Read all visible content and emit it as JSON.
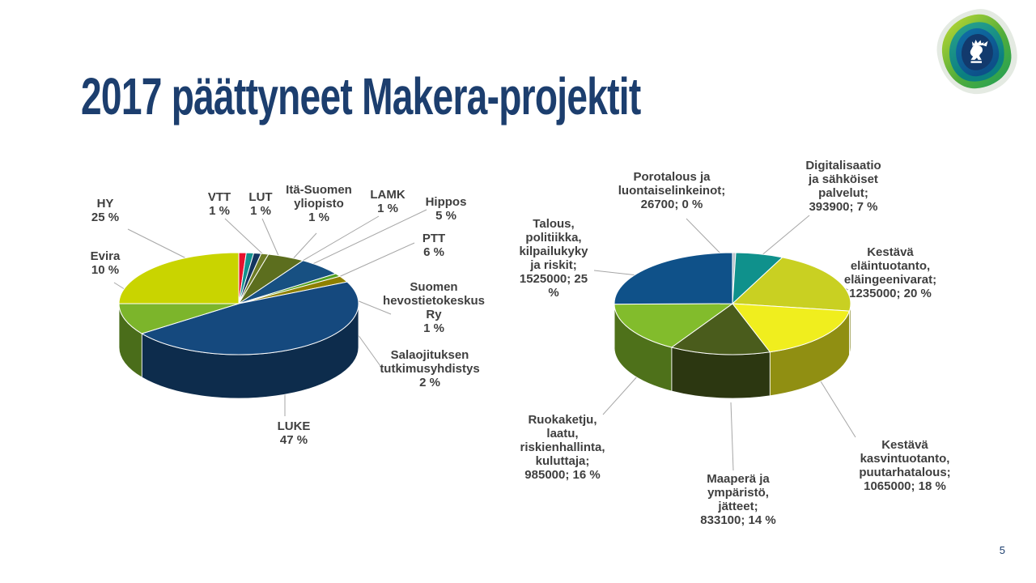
{
  "title": "2017 päättyneet Makera-projektit",
  "page_number": "5",
  "colors": {
    "title_text": "#1c3e6e",
    "label_text": "#3f3f3f",
    "leader_line": "#a6a6a6",
    "background": "#ffffff"
  },
  "logo": {
    "icon": "finnish-lion-emblem"
  },
  "chart_data": [
    {
      "type": "pie",
      "style": "3d",
      "title": "",
      "legend_position": "none",
      "labels": "outside-with-leader-lines",
      "slices": [
        {
          "label": "VTT",
          "pct": 1,
          "color": "#e8112d",
          "display": "VTT\n1 %"
        },
        {
          "label": "LUT",
          "pct": 1,
          "color": "#12918e",
          "display": "LUT\n1 %"
        },
        {
          "label": "Itä-Suomen yliopisto",
          "pct": 1,
          "color": "#14355f",
          "display": "Itä-Suomen\nyliopisto\n1 %"
        },
        {
          "label": "LAMK",
          "pct": 1,
          "color": "#6d7c25",
          "display": "LAMK\n1 %"
        },
        {
          "label": "Hippos",
          "pct": 5,
          "color": "#5c6e1e",
          "display": "Hippos\n5 %"
        },
        {
          "label": "PTT",
          "pct": 6,
          "color": "#175082",
          "display": "PTT\n6 %"
        },
        {
          "label": "Suomen hevostietokeskus Ry",
          "pct": 1,
          "color": "#54a021",
          "display": "Suomen\nhevostietokeskus\nRy\n1 %"
        },
        {
          "label": "Salaojituksen tutkimusyhdistys",
          "pct": 2,
          "color": "#8e8000",
          "display": "Salaojituksen\ntutkimusyhdistys\n2 %"
        },
        {
          "label": "LUKE",
          "pct": 47,
          "color": "#15497e",
          "display": "LUKE\n47 %"
        },
        {
          "label": "Evira",
          "pct": 10,
          "color": "#7cb52b",
          "display": "Evira\n10 %"
        },
        {
          "label": "HY",
          "pct": 25,
          "color": "#c9d400",
          "display": "HY\n25 %"
        }
      ]
    },
    {
      "type": "pie",
      "style": "3d",
      "title": "",
      "legend_position": "none",
      "labels": "outside-with-leader-lines",
      "slices": [
        {
          "label": "Porotalous ja luontaiselinkeinot",
          "value": 26700,
          "pct": 0,
          "color": "#b9c0c9",
          "display": "Porotalous ja\nluontaiselinkeinot;\n26700; 0 %"
        },
        {
          "label": "Digitalisaatio ja sähköiset palvelut",
          "value": 393900,
          "pct": 7,
          "color": "#0f918c",
          "display": "Digitalisaatio\nja sähköiset\npalvelut;\n393900; 7 %"
        },
        {
          "label": "Kestävä eläintuotanto, eläingeenivarat",
          "value": 1235000,
          "pct": 20,
          "color": "#c9d022",
          "display": "Kestävä\neläintuotanto,\neläingeenivarat;\n1235000; 20 %"
        },
        {
          "label": "Kestävä kasvintuotanto, puutarhatalous",
          "value": 1065000,
          "pct": 18,
          "color": "#f0ee1e",
          "display": "Kestävä\nkasvintuotanto,\npuutarhatalous;\n1065000; 18 %"
        },
        {
          "label": "Maaperä ja ympäristö, jätteet",
          "value": 833100,
          "pct": 14,
          "color": "#4a5c1c",
          "display": "Maaperä ja\nympäristö,\njätteet;\n833100; 14 %"
        },
        {
          "label": "Ruokaketju, laatu, riskienhallinta, kuluttaja",
          "value": 985000,
          "pct": 16,
          "color": "#82bc2c",
          "display": "Ruokaketju,\nlaatu,\nriskienhallinta,\nkuluttaja;\n985000; 16 %"
        },
        {
          "label": "Talous, politiikka, kilpailukyky ja riskit",
          "value": 1525000,
          "pct": 25,
          "color": "#0f5189",
          "display": "Talous,\npolitiikka,\nkilpailukyky\nja riskit;\n1525000; 25\n%"
        }
      ]
    }
  ]
}
